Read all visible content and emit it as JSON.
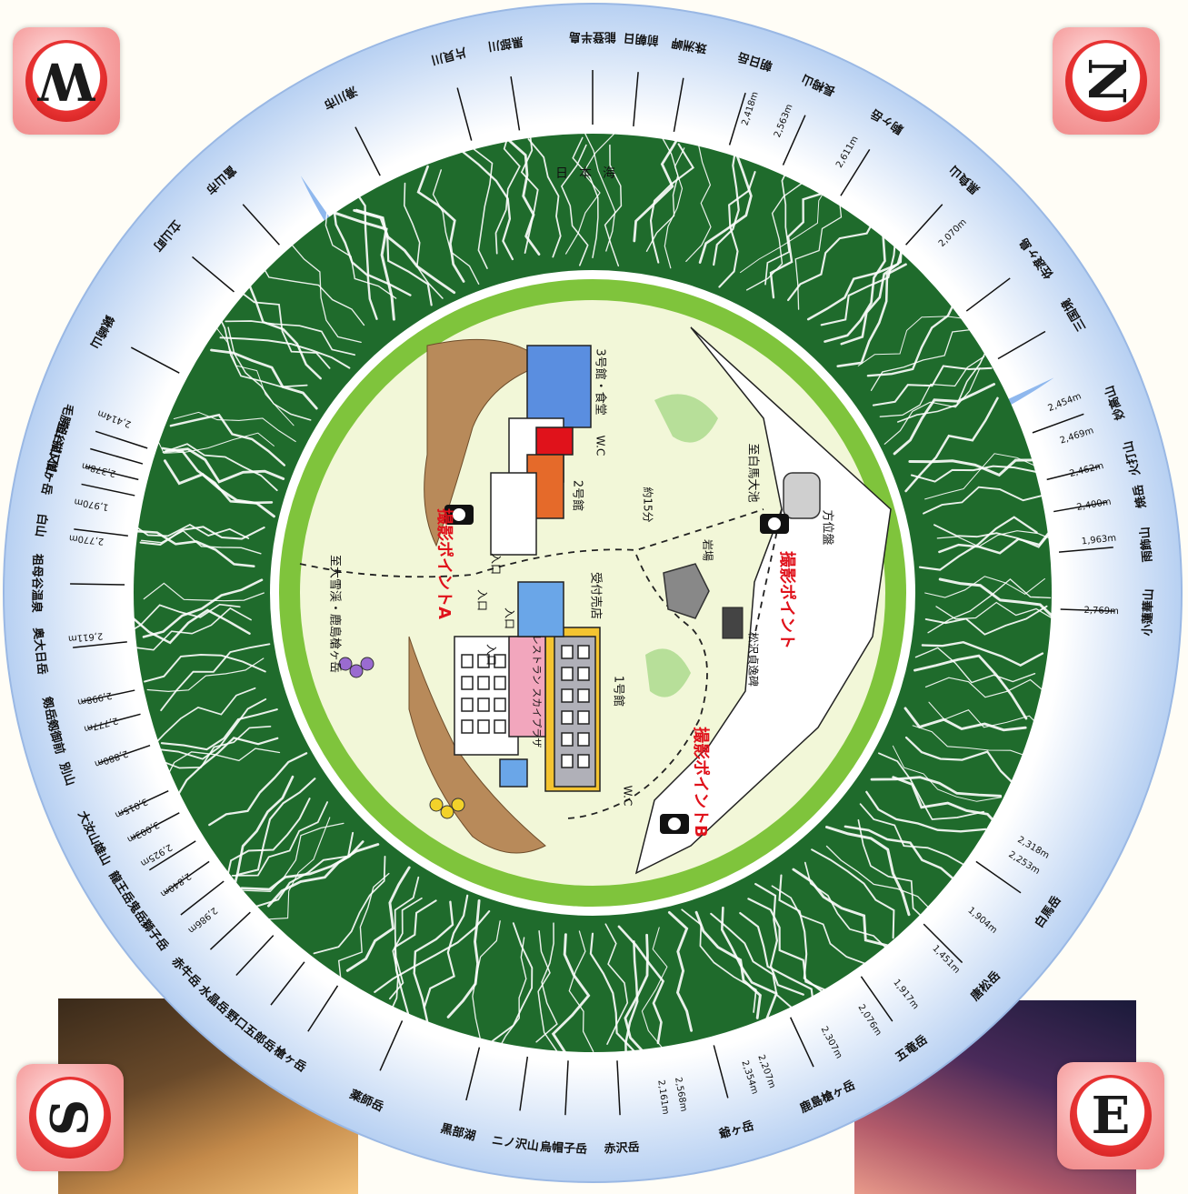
{
  "compass": {
    "north": "N",
    "south": "S",
    "east": "E",
    "west": "W"
  },
  "sea": "日本海",
  "panorama_labels": [
    {
      "text": "能登半島",
      "angle": 180
    },
    {
      "text": "片貝川",
      "angle": 165
    },
    {
      "text": "黒部川",
      "angle": 171
    },
    {
      "text": "滑川市",
      "angle": 153
    },
    {
      "text": "富山市",
      "angle": 138
    },
    {
      "text": "立山町",
      "angle": 130
    },
    {
      "text": "鍬崎山",
      "angle": 118
    },
    {
      "text": "毛勝山",
      "angle": 108
    },
    {
      "text": "釜谷山",
      "angle": 106
    },
    {
      "text": "猫又山",
      "angle": 104
    },
    {
      "text": "僧ヶ岳",
      "angle": 102
    },
    {
      "text": "白山",
      "angle": 97
    },
    {
      "text": "祖母谷温泉",
      "angle": 91
    },
    {
      "text": "奥大日岳",
      "angle": 84
    },
    {
      "text": "剱岳",
      "angle": 78
    },
    {
      "text": "剱御前",
      "angle": 75
    },
    {
      "text": "別山",
      "angle": 71
    },
    {
      "text": "大汝山",
      "angle": 65
    },
    {
      "text": "雄山",
      "angle": 62
    },
    {
      "text": "龍王岳",
      "angle": 58
    },
    {
      "text": "鬼岳",
      "angle": 55
    },
    {
      "text": "獅子岳",
      "angle": 52
    },
    {
      "text": "赤牛岳",
      "angle": 47
    },
    {
      "text": "水晶岳",
      "angle": 43
    },
    {
      "text": "野口五郎岳",
      "angle": 38
    },
    {
      "text": "槍ヶ岳",
      "angle": 33
    },
    {
      "text": "薬師岳",
      "angle": 24
    },
    {
      "text": "黒部湖",
      "angle": 14
    },
    {
      "text": "ニノ沢山",
      "angle": 8
    },
    {
      "text": "烏帽子岳",
      "angle": 3
    },
    {
      "text": "赤沢岳",
      "angle": -3
    },
    {
      "text": "爺ヶ岳",
      "angle": -15
    },
    {
      "text": "鹿島槍ヶ岳",
      "angle": -25
    },
    {
      "text": "五竜岳",
      "angle": -35
    },
    {
      "text": "唐松岳",
      "angle": -45
    },
    {
      "text": "白馬岳",
      "angle": -55
    },
    {
      "text": "小蓮華山",
      "angle": -88
    },
    {
      "text": "雨飾山",
      "angle": -95
    },
    {
      "text": "焼岳",
      "angle": -100
    },
    {
      "text": "火打山",
      "angle": -104
    },
    {
      "text": "妙高山",
      "angle": -110
    },
    {
      "text": "三国境",
      "angle": -120
    },
    {
      "text": "佐渡ヶ島",
      "angle": -127
    },
    {
      "text": "黒負山",
      "angle": -138
    },
    {
      "text": "駒ヶ岳",
      "angle": -148
    },
    {
      "text": "長栂山",
      "angle": -156
    },
    {
      "text": "朝日岳",
      "angle": -163
    },
    {
      "text": "珠洲岬",
      "angle": -170
    },
    {
      "text": "前朝日",
      "angle": -175
    }
  ],
  "elevations": [
    {
      "text": "2,611m",
      "angle": -150
    },
    {
      "text": "2,070m",
      "angle": -135
    },
    {
      "text": "2,769m",
      "angle": -88
    },
    {
      "text": "1,963m",
      "angle": -96
    },
    {
      "text": "2,400m",
      "angle": -100
    },
    {
      "text": "2,462m",
      "angle": -104
    },
    {
      "text": "2,469m",
      "angle": -108
    },
    {
      "text": "2,454m",
      "angle": -112
    },
    {
      "text": "2,318m",
      "angle": -60
    },
    {
      "text": "2,253m",
      "angle": -58
    },
    {
      "text": "1,904m",
      "angle": -50
    },
    {
      "text": "1,451m",
      "angle": -44
    },
    {
      "text": "1,917m",
      "angle": -38
    },
    {
      "text": "2,076m",
      "angle": -33
    },
    {
      "text": "2,307m",
      "angle": -28
    },
    {
      "text": "2,207m",
      "angle": -20
    },
    {
      "text": "2,354m",
      "angle": -18
    },
    {
      "text": "2,568m",
      "angle": -10
    },
    {
      "text": "2,161m",
      "angle": -8
    },
    {
      "text": "2,414m",
      "angle": 110
    },
    {
      "text": "2,378m",
      "angle": 104
    },
    {
      "text": "1,970m",
      "angle": 100
    },
    {
      "text": "2,770m",
      "angle": 96
    },
    {
      "text": "2,611m",
      "angle": 85
    },
    {
      "text": "2,998m",
      "angle": 78
    },
    {
      "text": "2,777m",
      "angle": 75
    },
    {
      "text": "2,880m",
      "angle": 71
    },
    {
      "text": "3,015m",
      "angle": 65
    },
    {
      "text": "3,003m",
      "angle": 62
    },
    {
      "text": "2,925m",
      "angle": 59
    },
    {
      "text": "2,840m",
      "angle": 55
    },
    {
      "text": "2,986m",
      "angle": 50
    },
    {
      "text": "2,563m",
      "angle": -158
    },
    {
      "text": "2,418m",
      "angle": -162
    }
  ],
  "inner_map": {
    "building_3": "3号館・食堂",
    "building_2": "2号館",
    "building_1": "1号館",
    "wc_1": "W.C",
    "wc_2": "W.C",
    "reception": "受付売店",
    "restaurant": "レストラン スカイプラザ",
    "entrance_a": "入口",
    "entrance_b": "入口",
    "entrance_c": "入口",
    "entrance_d": "入口",
    "to_omoike": "至白馬大池",
    "to_daisekkei": "至大雪渓・鹿島槍ヶ岳",
    "walk_time": "約15分",
    "direction_plate": "方位盤",
    "rock": "岩場",
    "monument": "松沢貞逸碑",
    "photo_a": "撮影ポイントA",
    "photo_b": "撮影ポイントB",
    "photo_c": "撮影ポイント"
  },
  "colors": {
    "sea": "#8fb8ee",
    "ring_outer": "#c8dcf6",
    "mountain": "#1f6b2c",
    "inner_ring": "#7fc43c",
    "inner_bg": "#f2f7d8",
    "red": "#e0121b"
  }
}
